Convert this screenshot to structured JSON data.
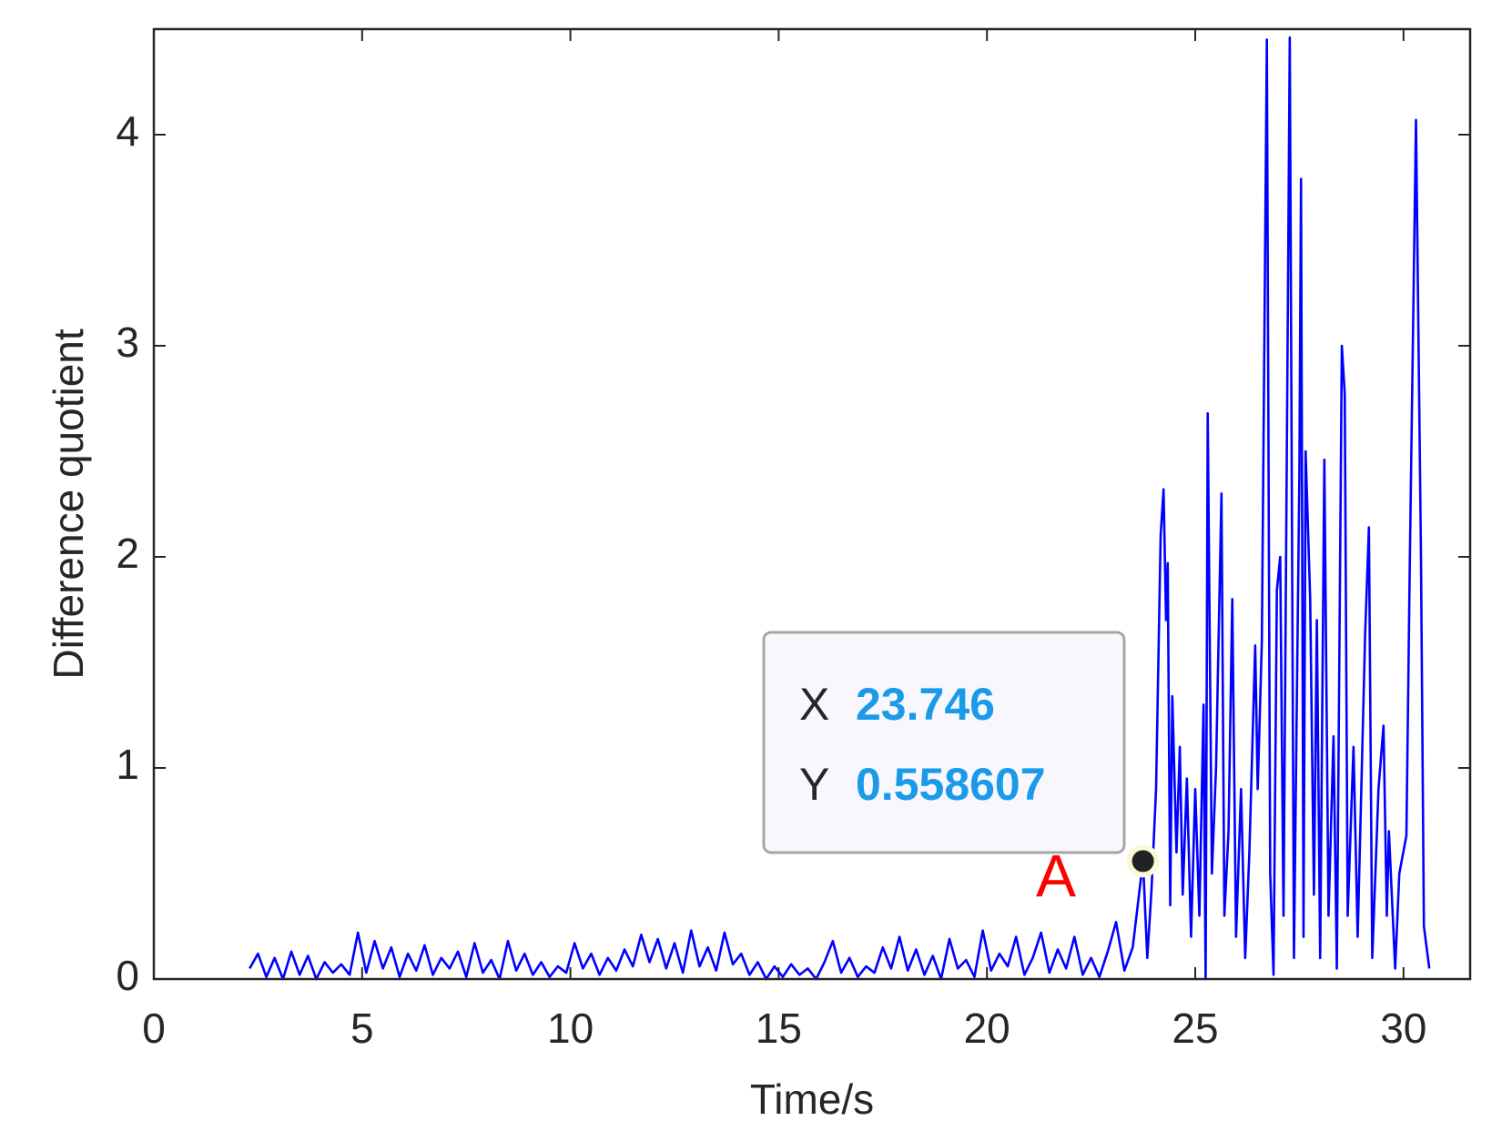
{
  "chart_data": {
    "type": "line",
    "x_label": "Time/s",
    "y_label": "Difference quotient",
    "xlim": [
      0,
      31.6
    ],
    "ylim": [
      0,
      4.5
    ],
    "xticks": [
      0,
      5,
      10,
      15,
      20,
      25,
      30
    ],
    "yticks": [
      0,
      1,
      2,
      3,
      4
    ],
    "x": [
      2.3,
      2.5,
      2.7,
      2.9,
      3.1,
      3.3,
      3.5,
      3.7,
      3.9,
      4.1,
      4.3,
      4.5,
      4.7,
      4.9,
      5.1,
      5.3,
      5.5,
      5.7,
      5.9,
      6.1,
      6.3,
      6.5,
      6.7,
      6.9,
      7.1,
      7.3,
      7.5,
      7.7,
      7.9,
      8.1,
      8.3,
      8.5,
      8.7,
      8.9,
      9.1,
      9.3,
      9.5,
      9.7,
      9.9,
      10.1,
      10.3,
      10.5,
      10.7,
      10.9,
      11.1,
      11.3,
      11.5,
      11.7,
      11.9,
      12.1,
      12.3,
      12.5,
      12.7,
      12.9,
      13.1,
      13.3,
      13.5,
      13.7,
      13.9,
      14.1,
      14.3,
      14.5,
      14.7,
      14.9,
      15.1,
      15.3,
      15.5,
      15.7,
      15.9,
      16.1,
      16.3,
      16.5,
      16.7,
      16.9,
      17.1,
      17.3,
      17.5,
      17.7,
      17.9,
      18.1,
      18.3,
      18.5,
      18.7,
      18.9,
      19.1,
      19.3,
      19.5,
      19.7,
      19.9,
      20.1,
      20.3,
      20.5,
      20.7,
      20.9,
      21.1,
      21.3,
      21.5,
      21.7,
      21.9,
      22.1,
      22.3,
      22.5,
      22.7,
      22.9,
      23.1,
      23.3,
      23.5,
      23.746,
      23.85,
      23.95,
      24.06,
      24.17,
      24.24,
      24.3,
      24.34,
      24.4,
      24.45,
      24.55,
      24.63,
      24.7,
      24.8,
      24.9,
      25.0,
      25.1,
      25.2,
      25.25,
      25.3,
      25.4,
      25.5,
      25.63,
      25.7,
      25.8,
      25.89,
      25.98,
      26.1,
      26.2,
      26.3,
      26.44,
      26.5,
      26.6,
      26.72,
      26.8,
      26.88,
      26.96,
      27.04,
      27.12,
      27.27,
      27.37,
      27.5,
      27.54,
      27.6,
      27.65,
      27.76,
      27.85,
      27.92,
      28.0,
      28.1,
      28.2,
      28.32,
      28.4,
      28.52,
      28.59,
      28.66,
      28.8,
      28.9,
      29.08,
      29.17,
      29.25,
      29.4,
      29.52,
      29.6,
      29.65,
      29.8,
      29.9,
      30.07,
      30.15,
      30.3,
      30.42,
      30.49,
      30.62
    ],
    "series": [
      {
        "color": "#0000ff",
        "values": [
          0.05,
          0.12,
          0.01,
          0.1,
          0.0,
          0.13,
          0.02,
          0.11,
          0.0,
          0.08,
          0.03,
          0.07,
          0.02,
          0.22,
          0.03,
          0.18,
          0.05,
          0.15,
          0.01,
          0.12,
          0.04,
          0.16,
          0.02,
          0.1,
          0.05,
          0.13,
          0.01,
          0.17,
          0.03,
          0.09,
          0.0,
          0.18,
          0.04,
          0.12,
          0.02,
          0.08,
          0.01,
          0.06,
          0.03,
          0.17,
          0.05,
          0.12,
          0.02,
          0.1,
          0.04,
          0.14,
          0.06,
          0.21,
          0.08,
          0.19,
          0.05,
          0.17,
          0.03,
          0.23,
          0.06,
          0.15,
          0.04,
          0.22,
          0.07,
          0.12,
          0.02,
          0.08,
          0.0,
          0.06,
          0.01,
          0.07,
          0.02,
          0.05,
          0.0,
          0.08,
          0.18,
          0.03,
          0.1,
          0.01,
          0.06,
          0.03,
          0.15,
          0.05,
          0.2,
          0.04,
          0.14,
          0.02,
          0.11,
          0.0,
          0.19,
          0.05,
          0.09,
          0.01,
          0.23,
          0.04,
          0.12,
          0.06,
          0.2,
          0.02,
          0.1,
          0.22,
          0.03,
          0.14,
          0.05,
          0.2,
          0.02,
          0.1,
          0.01,
          0.13,
          0.27,
          0.04,
          0.15,
          0.558607,
          0.1,
          0.42,
          0.9,
          2.1,
          2.32,
          1.7,
          1.97,
          0.35,
          1.34,
          0.6,
          1.1,
          0.4,
          0.95,
          0.2,
          0.9,
          0.3,
          1.3,
          0.0,
          2.68,
          0.5,
          1.0,
          2.3,
          0.3,
          0.7,
          1.8,
          0.2,
          0.9,
          0.1,
          0.6,
          1.58,
          0.9,
          1.6,
          4.45,
          0.5,
          0.02,
          1.84,
          2.0,
          0.3,
          4.46,
          0.1,
          2.38,
          3.79,
          0.2,
          2.5,
          1.8,
          0.4,
          1.7,
          0.1,
          2.46,
          0.3,
          1.15,
          0.05,
          3.0,
          2.77,
          0.3,
          1.1,
          0.2,
          1.64,
          2.14,
          0.1,
          0.9,
          1.2,
          0.3,
          0.7,
          0.05,
          0.5,
          0.68,
          1.95,
          4.07,
          2.0,
          0.25,
          0.05
        ]
      }
    ],
    "datatip": {
      "x_name": "X",
      "x": 23.746,
      "y_name": "Y",
      "y": 0.558607,
      "label": "A"
    }
  }
}
